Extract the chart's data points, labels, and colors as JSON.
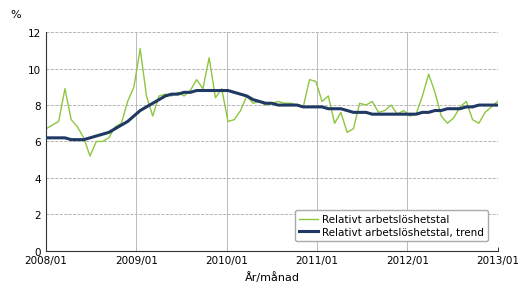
{
  "title": "",
  "ylabel": "%",
  "xlabel": "År/månad",
  "ylim": [
    0,
    12
  ],
  "yticks": [
    0,
    2,
    4,
    6,
    8,
    10,
    12
  ],
  "xtick_labels": [
    "2008/01",
    "2009/01",
    "2010/01",
    "2011/01",
    "2012/01",
    "2013/01"
  ],
  "bg_color": "#ffffff",
  "grid_color": "#aaaaaa",
  "raw_color": "#8dc63f",
  "trend_color": "#1f3864",
  "legend_raw": "Relativt arbetslöshetstal",
  "legend_trend": "Relativt arbetslöshetstal, trend",
  "raw_values": [
    6.7,
    6.9,
    7.1,
    8.9,
    7.2,
    6.8,
    6.2,
    5.2,
    6.0,
    6.0,
    6.2,
    6.8,
    7.0,
    8.2,
    9.0,
    11.1,
    8.5,
    7.4,
    8.5,
    8.6,
    8.5,
    8.7,
    8.5,
    8.8,
    9.4,
    8.9,
    10.6,
    8.4,
    8.9,
    7.1,
    7.2,
    7.7,
    8.5,
    8.1,
    8.2,
    8.0,
    8.1,
    8.2,
    8.1,
    8.1,
    8.0,
    7.9,
    9.4,
    9.3,
    8.2,
    8.5,
    7.0,
    7.6,
    6.5,
    6.7,
    8.1,
    8.0,
    8.2,
    7.6,
    7.7,
    8.0,
    7.5,
    7.7,
    7.4,
    7.5,
    8.5,
    9.7,
    8.7,
    7.4,
    7.0,
    7.3,
    7.9,
    8.2,
    7.2,
    7.0,
    7.6,
    7.9,
    8.2
  ],
  "trend_values": [
    6.2,
    6.2,
    6.2,
    6.2,
    6.1,
    6.1,
    6.1,
    6.2,
    6.3,
    6.4,
    6.5,
    6.7,
    6.9,
    7.1,
    7.4,
    7.7,
    7.9,
    8.1,
    8.3,
    8.5,
    8.6,
    8.6,
    8.7,
    8.7,
    8.8,
    8.8,
    8.8,
    8.8,
    8.8,
    8.8,
    8.7,
    8.6,
    8.5,
    8.3,
    8.2,
    8.1,
    8.1,
    8.0,
    8.0,
    8.0,
    8.0,
    7.9,
    7.9,
    7.9,
    7.9,
    7.8,
    7.8,
    7.8,
    7.7,
    7.6,
    7.6,
    7.6,
    7.5,
    7.5,
    7.5,
    7.5,
    7.5,
    7.5,
    7.5,
    7.5,
    7.6,
    7.6,
    7.7,
    7.7,
    7.8,
    7.8,
    7.8,
    7.9,
    7.9,
    8.0,
    8.0,
    8.0,
    8.0
  ]
}
